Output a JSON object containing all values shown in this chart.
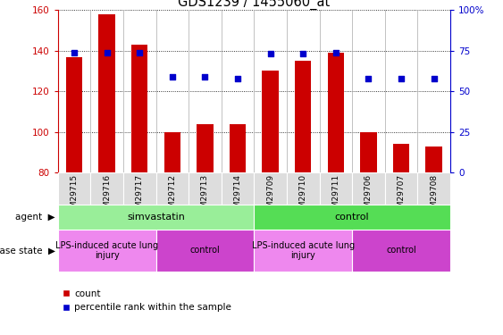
{
  "title": "GDS1239 / 1455060_at",
  "samples": [
    "GSM29715",
    "GSM29716",
    "GSM29717",
    "GSM29712",
    "GSM29713",
    "GSM29714",
    "GSM29709",
    "GSM29710",
    "GSM29711",
    "GSM29706",
    "GSM29707",
    "GSM29708"
  ],
  "counts": [
    137,
    158,
    143,
    100,
    104,
    104,
    130,
    135,
    139,
    100,
    94,
    93
  ],
  "percentiles": [
    74,
    74,
    74,
    59,
    59,
    58,
    73,
    73,
    74,
    58,
    58,
    58
  ],
  "ymin": 80,
  "ymax": 160,
  "yticks": [
    80,
    100,
    120,
    140,
    160
  ],
  "y2min": 0,
  "y2max": 100,
  "y2ticks": [
    0,
    25,
    50,
    75,
    100
  ],
  "bar_color": "#cc0000",
  "dot_color": "#0000cc",
  "bar_width": 0.5,
  "agent_groups": [
    {
      "label": "simvastatin",
      "start": 0,
      "end": 6,
      "color": "#99ee99"
    },
    {
      "label": "control",
      "start": 6,
      "end": 12,
      "color": "#55dd55"
    }
  ],
  "disease_groups": [
    {
      "label": "LPS-induced acute lung\ninjury",
      "start": 0,
      "end": 3,
      "color": "#ee88ee"
    },
    {
      "label": "control",
      "start": 3,
      "end": 6,
      "color": "#cc44cc"
    },
    {
      "label": "LPS-induced acute lung\ninjury",
      "start": 6,
      "end": 9,
      "color": "#ee88ee"
    },
    {
      "label": "control",
      "start": 9,
      "end": 12,
      "color": "#cc44cc"
    }
  ],
  "agent_label": "agent",
  "disease_label": "disease state",
  "legend_count": "count",
  "legend_percentile": "percentile rank within the sample",
  "tick_fontsize": 7.5,
  "label_fontsize": 8,
  "title_fontsize": 10.5
}
